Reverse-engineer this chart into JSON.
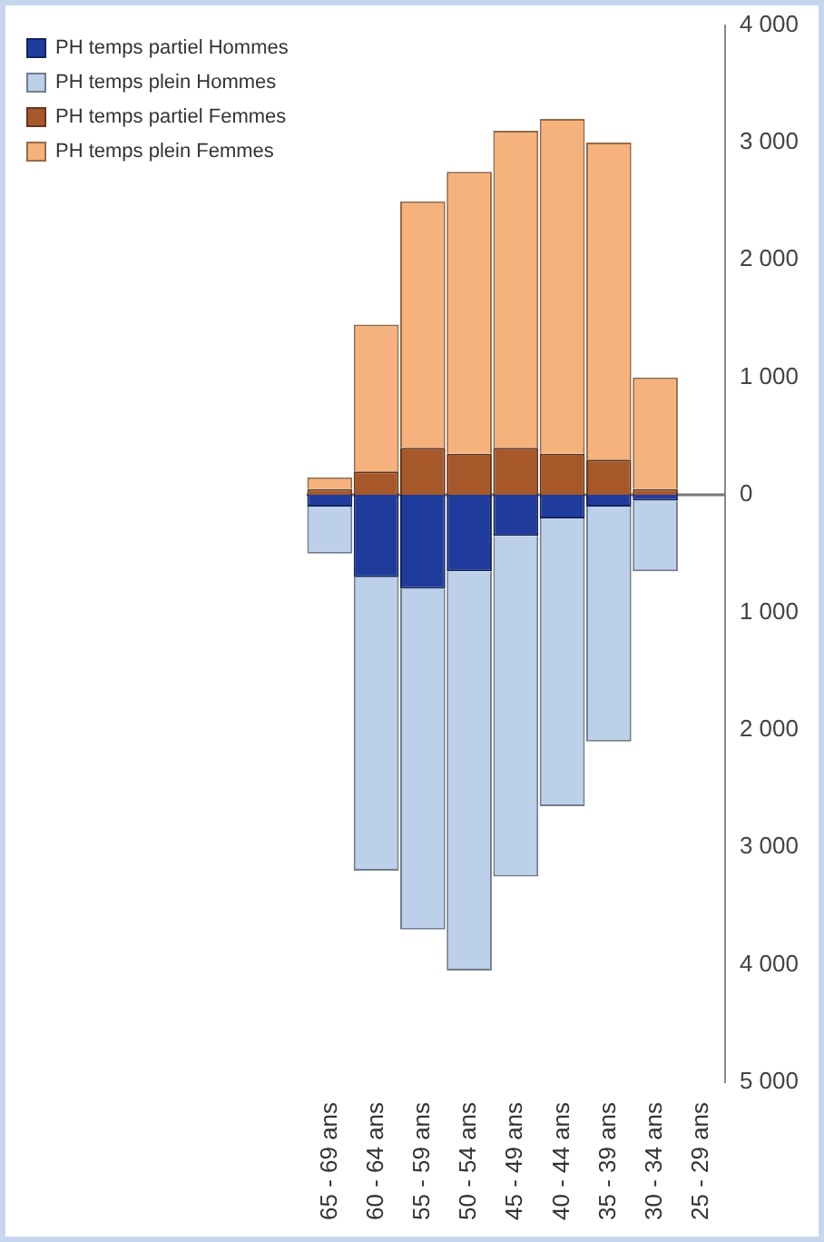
{
  "chart_data": {
    "type": "bar",
    "stacked": true,
    "legend": "left",
    "grid": false,
    "categories": [
      "65 - 69 ans",
      "60 - 64 ans",
      "55 - 59 ans",
      "50 - 54 ans",
      "45 - 49 ans",
      "40 - 44 ans",
      "35 - 39 ans",
      "30 - 34 ans",
      "25 - 29 ans"
    ],
    "series": [
      {
        "name": "PH temps partiel Hommes",
        "color": "#1f3c9c",
        "values": [
          -100,
          -700,
          -800,
          -650,
          -350,
          -200,
          -100,
          -50,
          0
        ]
      },
      {
        "name": "PH temps plein Hommes",
        "color": "#bcd0ea",
        "values": [
          -400,
          -2500,
          -2900,
          -3400,
          -2900,
          -2450,
          -2000,
          -600,
          0
        ]
      },
      {
        "name": "PH temps partiel Femmes",
        "color": "#a6582a",
        "values": [
          50,
          200,
          400,
          350,
          400,
          350,
          300,
          50,
          0
        ]
      },
      {
        "name": "PH temps plein Femmes",
        "color": "#f6b27c",
        "values": [
          100,
          1250,
          2100,
          2400,
          2700,
          2850,
          2700,
          950,
          0
        ]
      }
    ],
    "ref_lines": [
      {
        "axis": "y",
        "value": 0,
        "color": "#777777"
      }
    ],
    "ylim": [
      -5000,
      4000
    ],
    "yticks": [
      {
        "value": -5000,
        "label": "5 000"
      },
      {
        "value": -4000,
        "label": "4 000"
      },
      {
        "value": -3000,
        "label": "3 000"
      },
      {
        "value": -2000,
        "label": "2 000"
      },
      {
        "value": -1000,
        "label": "1 000"
      },
      0,
      {
        "value": 1000,
        "label": "1 000"
      },
      {
        "value": 2000,
        "label": "2 000"
      },
      {
        "value": 3000,
        "label": "3 000"
      },
      {
        "value": 4000,
        "label": "4 000"
      }
    ]
  }
}
